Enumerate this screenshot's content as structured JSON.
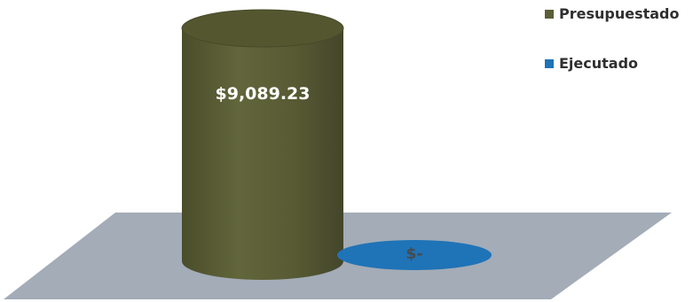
{
  "chart_data": {
    "type": "bar",
    "style": "3d-cylinder",
    "categories": [
      "Presupuestado",
      "Ejecutado"
    ],
    "values": [
      9089.23,
      0
    ],
    "data_labels": [
      "$9,089.23",
      "$-"
    ],
    "colors": [
      "#5b5e36",
      "#1f73b7"
    ],
    "floor_color": "#a3acb7",
    "title": "",
    "xlabel": "",
    "ylabel": "",
    "grid": false,
    "legend_position": "top-right"
  },
  "legend": [
    {
      "label": "Presupuestado",
      "color": "#5b5e36"
    },
    {
      "label": "Ejecutado",
      "color": "#1f73b7"
    }
  ]
}
